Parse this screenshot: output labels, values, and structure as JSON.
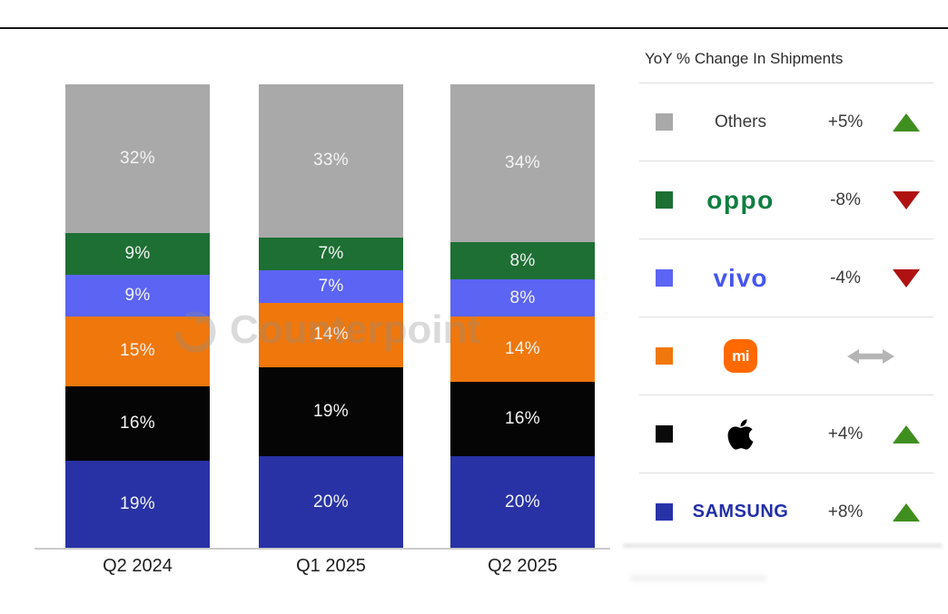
{
  "chart_data": {
    "type": "bar",
    "stacked": true,
    "title": "",
    "categories": [
      "Q2 2024",
      "Q1 2025",
      "Q2 2025"
    ],
    "value_suffix": "%",
    "ylim": [
      0,
      100
    ],
    "stack_order": "bottom-to-top",
    "series": [
      {
        "name": "Samsung",
        "color": "#2832a5",
        "values": [
          19,
          20,
          20
        ]
      },
      {
        "name": "Apple",
        "color": "#050505",
        "values": [
          16,
          19,
          16
        ]
      },
      {
        "name": "Xiaomi",
        "color": "#f0770c",
        "values": [
          15,
          14,
          14
        ]
      },
      {
        "name": "vivo",
        "color": "#5b64f3",
        "values": [
          9,
          7,
          8
        ]
      },
      {
        "name": "OPPO",
        "color": "#1d6f33",
        "values": [
          9,
          7,
          8
        ]
      },
      {
        "name": "Others",
        "color": "#a9a9a9",
        "values": [
          32,
          33,
          34
        ]
      }
    ]
  },
  "watermark": {
    "text": "Counterpoint"
  },
  "legend": {
    "title": "YoY % Change In Shipments",
    "colors": {
      "up": "#3f8f1f",
      "down": "#b01212",
      "flat": "#b5b5b5"
    },
    "rows": [
      {
        "brand": "Others",
        "logo": {
          "kind": "text",
          "text": "Others",
          "color": "#3a3a3a"
        },
        "swatch_color": "#a9a9a9",
        "change": "+5%",
        "direction": "up"
      },
      {
        "brand": "OPPO",
        "logo": {
          "kind": "wordmark",
          "text": "oppo",
          "color": "#0e7d3f",
          "style": "oppo"
        },
        "swatch_color": "#1d6f33",
        "change": "-8%",
        "direction": "down"
      },
      {
        "brand": "vivo",
        "logo": {
          "kind": "wordmark",
          "text": "vivo",
          "color": "#4655f0",
          "style": "vivo"
        },
        "swatch_color": "#5b64f3",
        "change": "-4%",
        "direction": "down"
      },
      {
        "brand": "Xiaomi",
        "logo": {
          "kind": "mi",
          "text": "mi",
          "color": "#ff6900"
        },
        "swatch_color": "#f0770c",
        "change": "",
        "direction": "flat"
      },
      {
        "brand": "Apple",
        "logo": {
          "kind": "apple",
          "color": "#000000"
        },
        "swatch_color": "#0a0a0a",
        "change": "+4%",
        "direction": "up"
      },
      {
        "brand": "Samsung",
        "logo": {
          "kind": "wordmark",
          "text": "SAMSUNG",
          "color": "#222fa8",
          "style": "samsung"
        },
        "swatch_color": "#2832a8",
        "change": "+8%",
        "direction": "up"
      }
    ]
  }
}
